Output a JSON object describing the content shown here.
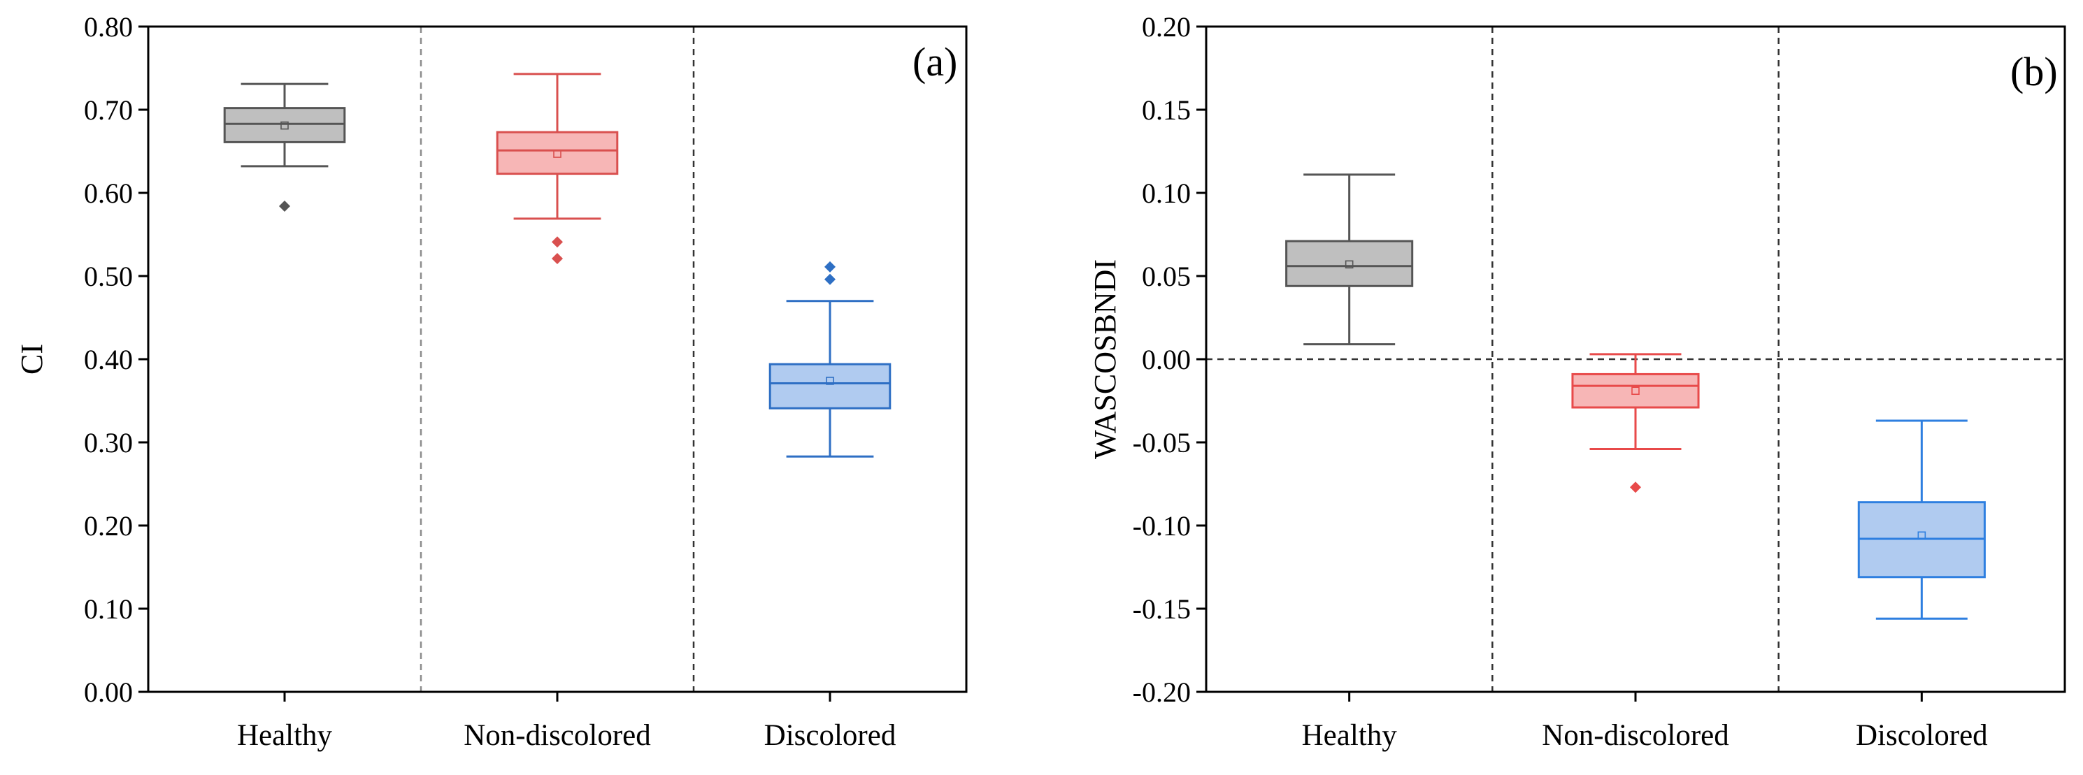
{
  "chart_data": [
    {
      "type": "box",
      "panel_label": "(a)",
      "ylabel": "CI",
      "xlabel": "",
      "categories": [
        "Healthy",
        "Non-discolored",
        "Discolored"
      ],
      "ylim": [
        0.0,
        0.8
      ],
      "yticks": [
        0.0,
        0.1,
        0.2,
        0.3,
        0.4,
        0.5,
        0.6,
        0.7,
        0.8
      ],
      "ytick_labels": [
        "0.00",
        "0.10",
        "0.20",
        "0.30",
        "0.40",
        "0.50",
        "0.60",
        "0.70",
        "0.80"
      ],
      "zero_line": false,
      "boxes": [
        {
          "category": "Healthy",
          "whisker_low": 0.632,
          "q1": 0.661,
          "median": 0.683,
          "q3": 0.702,
          "whisker_high": 0.731,
          "mean": 0.681,
          "outliers": [
            0.584
          ],
          "fill": "#bfbfbf",
          "stroke": "#555555"
        },
        {
          "category": "Non-discolored",
          "whisker_low": 0.569,
          "q1": 0.623,
          "median": 0.651,
          "q3": 0.673,
          "whisker_high": 0.743,
          "mean": 0.647,
          "outliers": [
            0.541,
            0.521
          ],
          "fill": "#f7b6b6",
          "stroke": "#d9504f"
        },
        {
          "category": "Discolored",
          "whisker_low": 0.283,
          "q1": 0.341,
          "median": 0.371,
          "q3": 0.394,
          "whisker_high": 0.47,
          "mean": 0.374,
          "outliers": [
            0.511,
            0.496
          ],
          "fill": "#b0cbf0",
          "stroke": "#2e6fc4"
        }
      ]
    },
    {
      "type": "box",
      "panel_label": "(b)",
      "ylabel": "WASCOSBNDI",
      "xlabel": "",
      "categories": [
        "Healthy",
        "Non-discolored",
        "Discolored"
      ],
      "ylim": [
        -0.2,
        0.2
      ],
      "yticks": [
        -0.2,
        -0.15,
        -0.1,
        -0.05,
        0.0,
        0.05,
        0.1,
        0.15,
        0.2
      ],
      "ytick_labels": [
        "-0.20",
        "-0.15",
        "-0.10",
        "-0.05",
        "0.00",
        "0.05",
        "0.10",
        "0.15",
        "0.20"
      ],
      "zero_line": true,
      "boxes": [
        {
          "category": "Healthy",
          "whisker_low": 0.009,
          "q1": 0.044,
          "median": 0.056,
          "q3": 0.071,
          "whisker_high": 0.111,
          "mean": 0.057,
          "outliers": [],
          "fill": "#bfbfbf",
          "stroke": "#555555"
        },
        {
          "category": "Non-discolored",
          "whisker_low": -0.054,
          "q1": -0.029,
          "median": -0.016,
          "q3": -0.009,
          "whisker_high": 0.003,
          "mean": -0.019,
          "outliers": [
            -0.077
          ],
          "fill": "#f7b6b6",
          "stroke": "#e84a4a"
        },
        {
          "category": "Discolored",
          "whisker_low": -0.156,
          "q1": -0.131,
          "median": -0.108,
          "q3": -0.086,
          "whisker_high": -0.037,
          "mean": -0.106,
          "outliers": [],
          "fill": "#b0cbf0",
          "stroke": "#2e7fe0"
        }
      ]
    }
  ]
}
